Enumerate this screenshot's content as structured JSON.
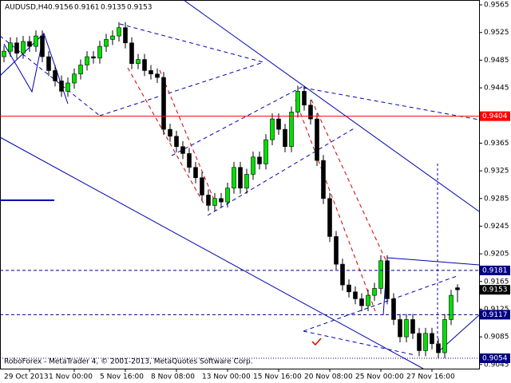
{
  "chart_data": {
    "type": "candlestick",
    "symbol": "AUDUSD,H4",
    "footer": "RoboForex - MetaTrader 4, © 2001-2013, MetaQuotes Software Corp.",
    "bull_color": "#00e000",
    "bear_color": "#000000",
    "ylim": [
      0.9039,
      0.9572
    ],
    "yticks": [
      0.9565,
      0.9525,
      0.9485,
      0.9445,
      0.9365,
      0.9325,
      0.9285,
      0.9245,
      0.9205,
      0.9165,
      0.9125,
      0.9085,
      0.9045
    ],
    "levels": [
      {
        "value": 0.9404,
        "color": "#ff0000",
        "style": "solid"
      },
      {
        "value": 0.9181,
        "color": "#000080",
        "style": "dashed"
      },
      {
        "value": 0.9153,
        "color": "#000000",
        "style": "none"
      },
      {
        "value": 0.9117,
        "color": "#000080",
        "style": "dashed"
      },
      {
        "value": 0.9054,
        "color": "#000080",
        "style": "dotted"
      }
    ],
    "categories": [
      null,
      null,
      null,
      null,
      "29 Oct 2013",
      null,
      null,
      null,
      null,
      null,
      null,
      "1 Nov 00:00",
      null,
      null,
      null,
      null,
      null,
      null,
      null,
      "5 Nov 16:00",
      null,
      null,
      null,
      null,
      null,
      null,
      null,
      "8 Nov 08:00",
      null,
      null,
      null,
      null,
      null,
      null,
      null,
      "13 Nov 00:00",
      null,
      null,
      null,
      null,
      null,
      null,
      null,
      "15 Nov 16:00",
      null,
      null,
      null,
      null,
      null,
      null,
      null,
      "20 Nov 08:00",
      null,
      null,
      null,
      null,
      null,
      null,
      null,
      "25 Nov 00:00",
      null,
      null,
      null,
      null,
      null,
      null,
      null,
      "27 Nov 16:00",
      null,
      null,
      null,
      null
    ],
    "candles": [
      [
        0.949,
        0.9506,
        0.9482,
        0.9498
      ],
      [
        0.9498,
        0.9518,
        0.949,
        0.951
      ],
      [
        0.951,
        0.9518,
        0.9487,
        0.9495
      ],
      [
        0.9495,
        0.952,
        0.9487,
        0.9512
      ],
      [
        0.9512,
        0.952,
        0.9497,
        0.9505
      ],
      [
        0.9505,
        0.9528,
        0.9497,
        0.952
      ],
      [
        0.952,
        0.9528,
        0.9482,
        0.949
      ],
      [
        0.949,
        0.9498,
        0.9462,
        0.947
      ],
      [
        0.947,
        0.9478,
        0.9447,
        0.9455
      ],
      [
        0.9455,
        0.9463,
        0.9432,
        0.944
      ],
      [
        0.944,
        0.946,
        0.9432,
        0.9452
      ],
      [
        0.9452,
        0.9473,
        0.9444,
        0.9465
      ],
      [
        0.9465,
        0.9486,
        0.9457,
        0.9478
      ],
      [
        0.9478,
        0.9498,
        0.947,
        0.949
      ],
      [
        0.949,
        0.9498,
        0.948,
        0.9488
      ],
      [
        0.9488,
        0.9513,
        0.948,
        0.9505
      ],
      [
        0.9505,
        0.9523,
        0.9497,
        0.9515
      ],
      [
        0.9515,
        0.9528,
        0.9507,
        0.952
      ],
      [
        0.952,
        0.954,
        0.9512,
        0.9532
      ],
      [
        0.9532,
        0.954,
        0.9502,
        0.951
      ],
      [
        0.951,
        0.9518,
        0.9472,
        0.948
      ],
      [
        0.948,
        0.9494,
        0.9472,
        0.9486
      ],
      [
        0.9486,
        0.9494,
        0.9462,
        0.947
      ],
      [
        0.947,
        0.9478,
        0.9457,
        0.9465
      ],
      [
        0.9465,
        0.9473,
        0.9452,
        0.946
      ],
      [
        0.946,
        0.9468,
        0.9377,
        0.9385
      ],
      [
        0.9385,
        0.9393,
        0.9367,
        0.9375
      ],
      [
        0.9375,
        0.9383,
        0.9352,
        0.936
      ],
      [
        0.936,
        0.9368,
        0.9342,
        0.935
      ],
      [
        0.935,
        0.9358,
        0.9322,
        0.933
      ],
      [
        0.933,
        0.9338,
        0.9307,
        0.9315
      ],
      [
        0.9315,
        0.9323,
        0.9282,
        0.929
      ],
      [
        0.929,
        0.9298,
        0.9267,
        0.9275
      ],
      [
        0.9275,
        0.9293,
        0.9267,
        0.9285
      ],
      [
        0.9285,
        0.9293,
        0.9272,
        0.928
      ],
      [
        0.928,
        0.9308,
        0.9272,
        0.93
      ],
      [
        0.93,
        0.9338,
        0.9292,
        0.933
      ],
      [
        0.933,
        0.9338,
        0.9292,
        0.93
      ],
      [
        0.93,
        0.9328,
        0.9292,
        0.932
      ],
      [
        0.932,
        0.9353,
        0.9312,
        0.9345
      ],
      [
        0.9345,
        0.9353,
        0.9327,
        0.9335
      ],
      [
        0.9335,
        0.9378,
        0.9327,
        0.937
      ],
      [
        0.937,
        0.9408,
        0.9362,
        0.94
      ],
      [
        0.94,
        0.9408,
        0.9377,
        0.9385
      ],
      [
        0.9385,
        0.9393,
        0.9352,
        0.936
      ],
      [
        0.936,
        0.9418,
        0.9352,
        0.941
      ],
      [
        0.941,
        0.9448,
        0.9402,
        0.944
      ],
      [
        0.944,
        0.9448,
        0.9412,
        0.942
      ],
      [
        0.942,
        0.9428,
        0.9392,
        0.94
      ],
      [
        0.94,
        0.9408,
        0.9332,
        0.934
      ],
      [
        0.934,
        0.9348,
        0.9277,
        0.9285
      ],
      [
        0.9285,
        0.9293,
        0.9222,
        0.923
      ],
      [
        0.923,
        0.9238,
        0.9182,
        0.919
      ],
      [
        0.919,
        0.9198,
        0.9152,
        0.916
      ],
      [
        0.916,
        0.9168,
        0.9142,
        0.915
      ],
      [
        0.915,
        0.9158,
        0.9132,
        0.914
      ],
      [
        0.914,
        0.9148,
        0.9122,
        0.913
      ],
      [
        0.913,
        0.9153,
        0.9122,
        0.9145
      ],
      [
        0.9145,
        0.9163,
        0.9137,
        0.9155
      ],
      [
        0.9155,
        0.9203,
        0.9147,
        0.9195
      ],
      [
        0.9195,
        0.9203,
        0.9132,
        0.914
      ],
      [
        0.914,
        0.9148,
        0.9102,
        0.911
      ],
      [
        0.911,
        0.9118,
        0.9077,
        0.9085
      ],
      [
        0.9085,
        0.9118,
        0.9077,
        0.911
      ],
      [
        0.911,
        0.9118,
        0.9082,
        0.909
      ],
      [
        0.909,
        0.9098,
        0.9057,
        0.9065
      ],
      [
        0.9065,
        0.9098,
        0.9057,
        0.909
      ],
      [
        0.909,
        0.9098,
        0.9067,
        0.9075
      ],
      [
        0.9075,
        0.9083,
        0.9054,
        0.9062
      ],
      [
        0.9062,
        0.9118,
        0.9054,
        0.911
      ],
      [
        0.911,
        0.9153,
        0.9102,
        0.9145
      ],
      [
        0.9156,
        0.9161,
        0.9135,
        0.9153
      ]
    ]
  }
}
